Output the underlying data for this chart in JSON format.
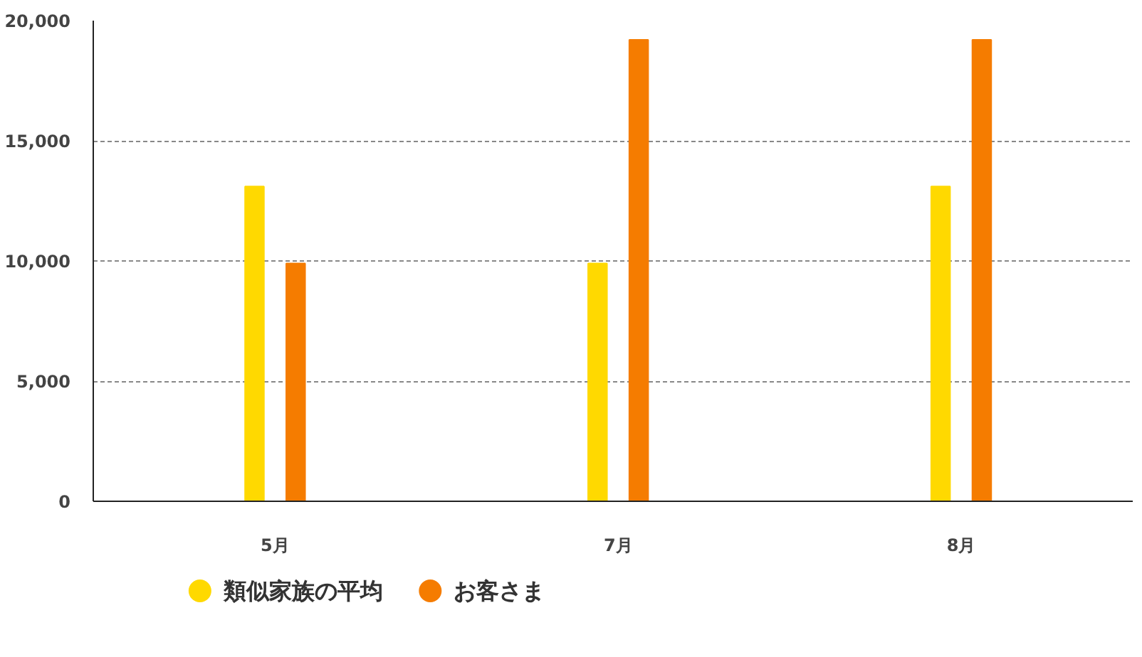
{
  "chart_data": {
    "type": "bar",
    "categories": [
      "5月",
      "7月",
      "8月"
    ],
    "series": [
      {
        "name": "類似家族の平均",
        "color": "#ffd900",
        "values": [
          13100,
          9900,
          13100
        ]
      },
      {
        "name": "お客さま",
        "color": "#f57c00",
        "values": [
          9900,
          19200,
          19200
        ]
      }
    ],
    "ylim": [
      0,
      20000
    ],
    "yticks": [
      0,
      {
        "value": 5000,
        "label": "5,000"
      },
      {
        "value": 10000,
        "label": "10,000"
      },
      {
        "value": 15000,
        "label": "15,000"
      },
      {
        "value": 20000,
        "label": "20,000"
      }
    ],
    "grid": "y",
    "legend": "bottom"
  }
}
